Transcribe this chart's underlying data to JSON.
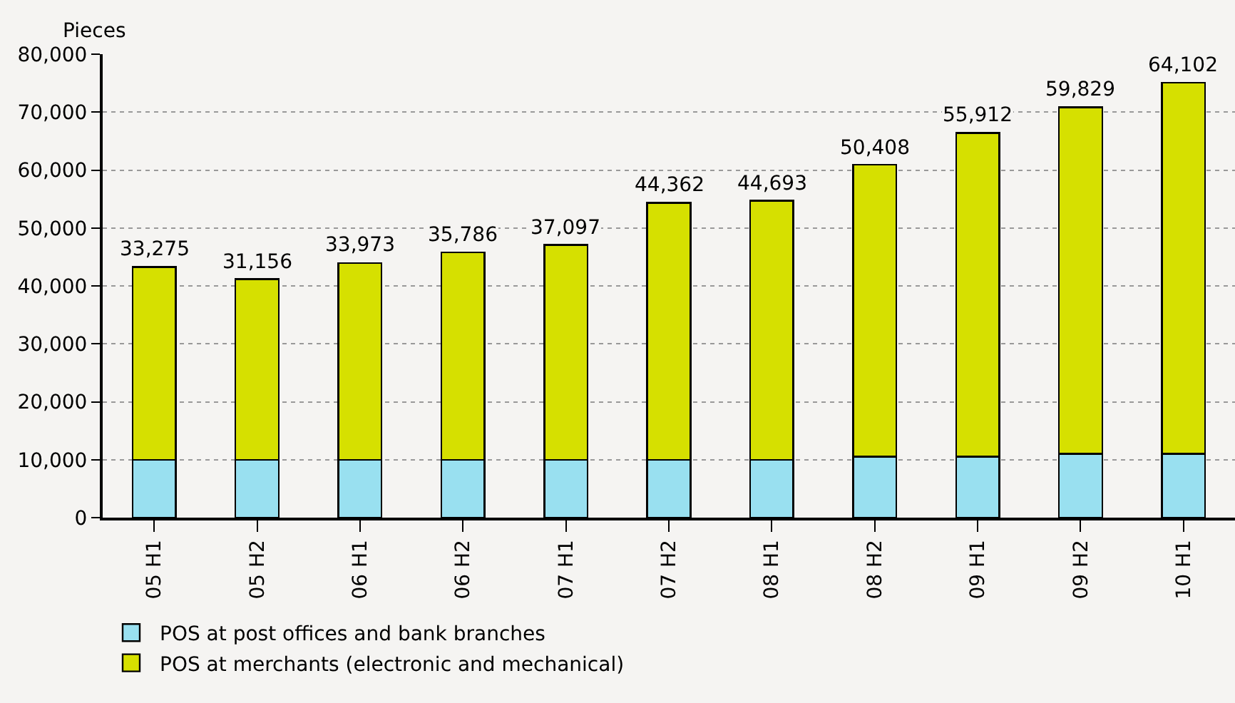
{
  "chart_data": {
    "type": "bar",
    "stacked": true,
    "ylabel": "Pieces",
    "categories": [
      "05 H1",
      "05 H2",
      "06 H1",
      "06 H2",
      "07 H1",
      "07 H2",
      "08 H1",
      "08 H2",
      "09 H1",
      "09 H2",
      "10 H1"
    ],
    "series": [
      {
        "name": "POS at post offices and bank branches",
        "color": "#99e0f0",
        "values": [
          10000,
          10000,
          10000,
          10000,
          10000,
          10000,
          10000,
          10500,
          10500,
          11000,
          11000
        ]
      },
      {
        "name": "POS at merchants (electronic and mechanical)",
        "color": "#d6e000",
        "values": [
          33275,
          31156,
          33973,
          35786,
          37097,
          44362,
          44693,
          50408,
          55912,
          59829,
          64102
        ],
        "value_labels": [
          "33,275",
          "31,156",
          "33,973",
          "35,786",
          "37,097",
          "44,362",
          "44,693",
          "50,408",
          "55,912",
          "59,829",
          "64,102"
        ]
      }
    ],
    "ylim": [
      0,
      80000
    ],
    "yticks": [
      0,
      {
        "value": 10000,
        "label": "10,000"
      },
      {
        "value": 20000,
        "label": "20,000"
      },
      {
        "value": 30000,
        "label": "30,000"
      },
      {
        "value": 40000,
        "label": "40,000"
      },
      {
        "value": 50000,
        "label": "50,000"
      },
      {
        "value": 60000,
        "label": "60,000"
      },
      {
        "value": 70000,
        "label": "70,000"
      },
      {
        "value": 80000,
        "label": "80,000"
      }
    ],
    "grid": "y",
    "legend": "bottom left"
  }
}
